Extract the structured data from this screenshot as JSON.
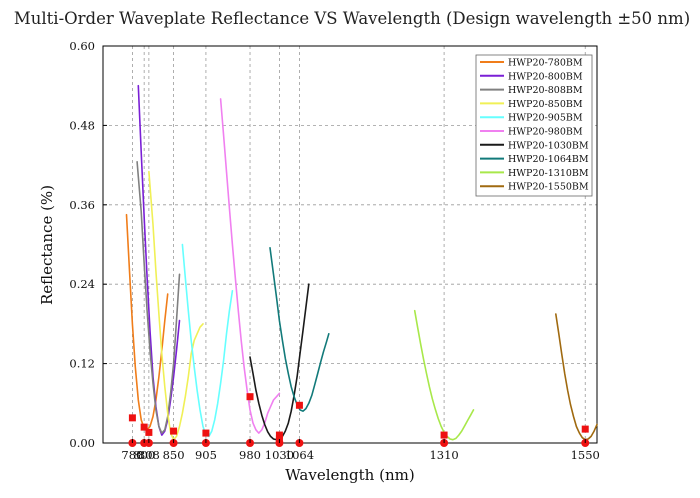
{
  "chart_data": {
    "type": "line",
    "title": "Multi-Order Waveplate Reflectance VS Wavelength (Design wavelength ±50 nm)",
    "xlabel": "Wavelength (nm)",
    "ylabel": "Reflectance (%)",
    "xlim": [
      730,
      1570
    ],
    "ylim": [
      0,
      0.6
    ],
    "x_ticks": [
      780,
      800,
      808,
      850,
      905,
      980,
      1030,
      1064,
      1310,
      1550
    ],
    "y_ticks": [
      0.0,
      0.12,
      0.24,
      0.36,
      0.48,
      0.6
    ],
    "y_tick_labels": [
      "0.00",
      "0.12",
      "0.24",
      "0.36",
      "0.48",
      "0.60"
    ],
    "grid": true,
    "legend_position": "top-right",
    "series": [
      {
        "name": "HWP20-780BM",
        "color": "#f07d1a",
        "x": [
          770,
          775,
          780,
          785,
          790,
          795,
          800,
          805,
          810,
          815,
          820,
          825,
          830,
          835,
          840
        ],
        "y": [
          0.345,
          0.26,
          0.18,
          0.115,
          0.065,
          0.035,
          0.022,
          0.02,
          0.025,
          0.04,
          0.065,
          0.1,
          0.14,
          0.185,
          0.225
        ]
      },
      {
        "name": "HWP20-800BM",
        "color": "#7a1fd6",
        "x": [
          790,
          795,
          800,
          805,
          810,
          815,
          820,
          825,
          830,
          835,
          840,
          845,
          850,
          855,
          860
        ],
        "y": [
          0.54,
          0.44,
          0.34,
          0.25,
          0.17,
          0.1,
          0.055,
          0.025,
          0.012,
          0.018,
          0.035,
          0.065,
          0.1,
          0.14,
          0.185
        ]
      },
      {
        "name": "HWP20-808BM",
        "color": "#808080",
        "x": [
          788,
          795,
          800,
          805,
          810,
          815,
          820,
          825,
          830,
          835,
          840,
          845,
          850,
          855,
          860
        ],
        "y": [
          0.425,
          0.35,
          0.27,
          0.2,
          0.14,
          0.09,
          0.05,
          0.025,
          0.015,
          0.02,
          0.04,
          0.075,
          0.12,
          0.185,
          0.255
        ]
      },
      {
        "name": "HWP20-850BM",
        "color": "#f0f056",
        "x": [
          808,
          815,
          820,
          825,
          830,
          835,
          840,
          845,
          850,
          855,
          860,
          865,
          870,
          875,
          880,
          885,
          890,
          895,
          900
        ],
        "y": [
          0.41,
          0.33,
          0.26,
          0.195,
          0.135,
          0.085,
          0.045,
          0.015,
          0.005,
          0.01,
          0.025,
          0.045,
          0.07,
          0.1,
          0.135,
          0.155,
          0.165,
          0.175,
          0.18
        ]
      },
      {
        "name": "HWP20-905BM",
        "color": "#66ffff",
        "x": [
          865,
          870,
          875,
          880,
          885,
          890,
          895,
          900,
          905,
          910,
          915,
          920,
          925,
          930,
          935,
          940,
          945,
          950
        ],
        "y": [
          0.3,
          0.25,
          0.2,
          0.155,
          0.115,
          0.08,
          0.05,
          0.025,
          0.012,
          0.01,
          0.018,
          0.035,
          0.06,
          0.09,
          0.125,
          0.165,
          0.2,
          0.23
        ]
      },
      {
        "name": "HWP20-980BM",
        "color": "#f080f0",
        "x": [
          930,
          935,
          940,
          945,
          950,
          955,
          960,
          965,
          970,
          975,
          980,
          985,
          990,
          995,
          1000,
          1005,
          1010,
          1015,
          1020,
          1025,
          1030
        ],
        "y": [
          0.52,
          0.465,
          0.41,
          0.355,
          0.3,
          0.25,
          0.2,
          0.155,
          0.115,
          0.08,
          0.05,
          0.03,
          0.02,
          0.015,
          0.02,
          0.03,
          0.045,
          0.055,
          0.065,
          0.07,
          0.075
        ]
      },
      {
        "name": "HWP20-1030BM",
        "color": "#1a1a1a",
        "x": [
          980,
          985,
          990,
          995,
          1000,
          1005,
          1010,
          1015,
          1020,
          1025,
          1030,
          1035,
          1040,
          1045,
          1050,
          1055,
          1060,
          1065,
          1070,
          1075,
          1080
        ],
        "y": [
          0.13,
          0.105,
          0.08,
          0.06,
          0.042,
          0.028,
          0.017,
          0.01,
          0.006,
          0.005,
          0.006,
          0.01,
          0.018,
          0.03,
          0.048,
          0.072,
          0.1,
          0.135,
          0.17,
          0.205,
          0.24
        ]
      },
      {
        "name": "HWP20-1064BM",
        "color": "#127a7a",
        "x": [
          1014,
          1020,
          1025,
          1030,
          1035,
          1040,
          1045,
          1050,
          1055,
          1060,
          1065,
          1070,
          1075,
          1080,
          1085,
          1090,
          1095,
          1100,
          1105,
          1110,
          1114
        ],
        "y": [
          0.295,
          0.255,
          0.22,
          0.185,
          0.155,
          0.128,
          0.105,
          0.085,
          0.07,
          0.058,
          0.05,
          0.048,
          0.052,
          0.06,
          0.072,
          0.088,
          0.105,
          0.122,
          0.138,
          0.153,
          0.165
        ]
      },
      {
        "name": "HWP20-1310BM",
        "color": "#a8e84a",
        "x": [
          1260,
          1265,
          1270,
          1275,
          1280,
          1285,
          1290,
          1295,
          1300,
          1305,
          1310,
          1315,
          1320,
          1325,
          1330,
          1335,
          1340,
          1345,
          1350,
          1355,
          1360
        ],
        "y": [
          0.2,
          0.175,
          0.15,
          0.127,
          0.105,
          0.085,
          0.067,
          0.051,
          0.037,
          0.025,
          0.016,
          0.01,
          0.006,
          0.005,
          0.007,
          0.012,
          0.018,
          0.026,
          0.034,
          0.042,
          0.05
        ]
      },
      {
        "name": "HWP20-1550BM",
        "color": "#a06a10",
        "x": [
          1500,
          1505,
          1510,
          1515,
          1520,
          1525,
          1530,
          1535,
          1540,
          1545,
          1550,
          1555,
          1560,
          1565,
          1570
        ],
        "y": [
          0.195,
          0.165,
          0.135,
          0.105,
          0.08,
          0.058,
          0.04,
          0.025,
          0.015,
          0.008,
          0.005,
          0.006,
          0.01,
          0.018,
          0.028
        ]
      }
    ],
    "red_markers": {
      "color": "#ee1111",
      "points": [
        {
          "x": 780,
          "y": 0.038
        },
        {
          "x": 800,
          "y": 0.024
        },
        {
          "x": 808,
          "y": 0.016
        },
        {
          "x": 850,
          "y": 0.018
        },
        {
          "x": 905,
          "y": 0.015
        },
        {
          "x": 980,
          "y": 0.07
        },
        {
          "x": 1030,
          "y": 0.012
        },
        {
          "x": 1030,
          "y": 0.006
        },
        {
          "x": 1064,
          "y": 0.057
        },
        {
          "x": 1310,
          "y": 0.012
        },
        {
          "x": 1550,
          "y": 0.021
        }
      ],
      "baseline_dots_x": [
        780,
        800,
        808,
        850,
        905,
        980,
        1030,
        1064,
        1310,
        1550
      ]
    }
  }
}
